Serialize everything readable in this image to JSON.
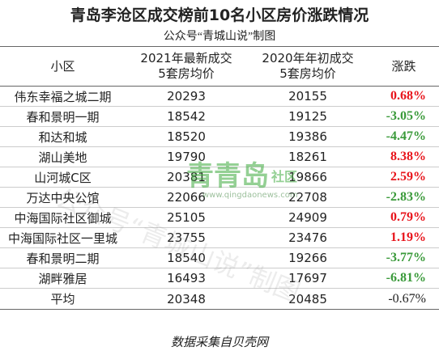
{
  "header": {
    "title": "青岛李沧区成交榜前10名小区房价涨跌情况",
    "subtitle": "公众号“青城山说”制图"
  },
  "table": {
    "columns": [
      [
        "小区"
      ],
      [
        "2021年最新成交",
        "5套房均价"
      ],
      [
        "2020年年初成交",
        "5套房均价"
      ],
      [
        "涨跌"
      ]
    ],
    "rows": [
      {
        "name": "伟东幸福之城二期",
        "price_2021": "20293",
        "price_2020": "20155",
        "change": "0.68%",
        "color": "#e8141b"
      },
      {
        "name": "春和景明一期",
        "price_2021": "18542",
        "price_2020": "19125",
        "change": "-3.05%",
        "color": "#3a9a3a"
      },
      {
        "name": "和达和城",
        "price_2021": "18520",
        "price_2020": "19386",
        "change": "-4.47%",
        "color": "#3a9a3a"
      },
      {
        "name": "湖山美地",
        "price_2021": "19790",
        "price_2020": "18261",
        "change": "8.38%",
        "color": "#e8141b"
      },
      {
        "name": "山河城C区",
        "price_2021": "20381",
        "price_2020": "19866",
        "change": "2.59%",
        "color": "#e8141b"
      },
      {
        "name": "万达中央公馆",
        "price_2021": "22066",
        "price_2020": "22708",
        "change": "-2.83%",
        "color": "#3a9a3a"
      },
      {
        "name": "中海国际社区御城",
        "price_2021": "25105",
        "price_2020": "24909",
        "change": "0.79%",
        "color": "#e8141b"
      },
      {
        "name": "中海国际社区一里城",
        "price_2021": "23755",
        "price_2020": "23476",
        "change": "1.19%",
        "color": "#e8141b"
      },
      {
        "name": "春和景明二期",
        "price_2021": "18540",
        "price_2020": "19266",
        "change": "-3.77%",
        "color": "#3a9a3a"
      },
      {
        "name": "湖畔雅居",
        "price_2021": "16493",
        "price_2020": "17697",
        "change": "-6.81%",
        "color": "#3a9a3a"
      }
    ],
    "average": {
      "name": "平均",
      "price_2021": "20348",
      "price_2020": "20485",
      "change": "-0.67%",
      "color": "#222222"
    }
  },
  "watermark": {
    "site": "青青岛",
    "site_tag": "社区",
    "url": "www.qingdaonews.com",
    "account": "公众号“青城山说”制图"
  },
  "footer": "数据采集自贝壳网"
}
